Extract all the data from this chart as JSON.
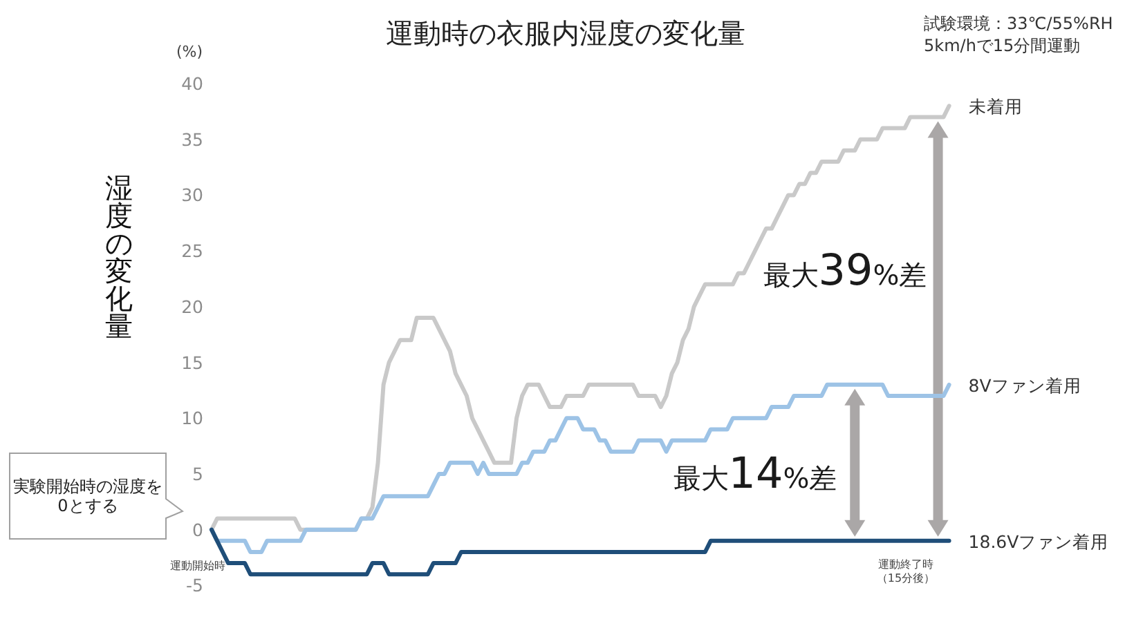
{
  "chart_data": {
    "type": "line",
    "title": "運動時の衣服内湿度の変化量",
    "ylabel": "湿度の変化量",
    "categories": [
      null,
      null,
      null,
      null,
      null,
      null,
      null,
      null,
      null,
      null,
      null,
      null,
      null,
      null,
      null,
      null,
      null,
      null,
      null,
      null,
      null,
      null,
      null,
      null,
      null,
      null,
      null,
      null,
      null,
      null,
      null,
      null,
      null,
      null,
      null,
      null,
      null,
      null,
      null,
      null,
      null,
      null,
      null,
      null,
      null,
      null,
      null,
      null,
      null,
      null,
      null,
      null,
      null,
      null,
      null,
      null,
      null,
      null,
      null,
      null,
      null,
      null,
      null,
      null,
      null,
      null,
      null,
      null,
      null,
      null,
      null,
      null,
      null,
      null,
      null,
      null,
      null,
      null,
      null,
      null,
      null,
      null,
      null,
      null,
      null,
      null,
      null,
      null,
      null,
      null,
      null,
      null,
      null,
      null,
      null,
      null,
      null,
      null,
      null,
      null,
      null,
      null,
      null,
      null,
      null,
      null,
      null,
      null,
      null,
      null,
      null,
      null,
      null,
      null,
      null,
      null,
      null,
      null,
      null,
      null,
      null,
      null,
      null,
      null,
      null,
      null,
      null,
      null,
      null,
      null,
      null,
      null,
      null,
      null
    ],
    "series": [
      {
        "name": "未着用",
        "color": "#c9c9c9",
        "values": [
          0,
          1,
          1,
          1,
          1,
          1,
          1,
          1,
          1,
          1,
          1,
          1,
          1,
          1,
          1,
          1,
          0,
          0,
          0,
          0,
          0,
          0,
          0,
          0,
          0,
          0,
          0,
          1,
          1,
          2,
          6,
          13,
          15,
          16,
          17,
          17,
          17,
          19,
          19,
          19,
          19,
          18,
          17,
          16,
          14,
          13,
          12,
          10,
          9,
          8,
          7,
          6,
          6,
          6,
          6,
          10,
          12,
          13,
          13,
          13,
          12,
          11,
          11,
          11,
          12,
          12,
          12,
          12,
          13,
          13,
          13,
          13,
          13,
          13,
          13,
          13,
          13,
          12,
          12,
          12,
          12,
          11,
          12,
          14,
          15,
          17,
          18,
          20,
          21,
          22,
          22,
          22,
          22,
          22,
          22,
          23,
          23,
          24,
          25,
          26,
          27,
          27,
          28,
          29,
          30,
          30,
          31,
          31,
          32,
          32,
          33,
          33,
          33,
          33,
          34,
          34,
          34,
          35,
          35,
          35,
          35,
          36,
          36,
          36,
          36,
          36,
          37,
          37,
          37,
          37,
          37,
          37,
          37,
          38
        ]
      },
      {
        "name": "8Vファン着用",
        "color": "#9dc3e6",
        "values": [
          0,
          -1,
          -1,
          -1,
          -1,
          -1,
          -1,
          -2,
          -2,
          -2,
          -1,
          -1,
          -1,
          -1,
          -1,
          -1,
          -1,
          0,
          0,
          0,
          0,
          0,
          0,
          0,
          0,
          0,
          0,
          1,
          1,
          1,
          2,
          3,
          3,
          3,
          3,
          3,
          3,
          3,
          3,
          3,
          4,
          5,
          5,
          6,
          6,
          6,
          6,
          6,
          5,
          6,
          5,
          5,
          5,
          5,
          5,
          5,
          6,
          6,
          7,
          7,
          7,
          8,
          8,
          9,
          10,
          10,
          10,
          9,
          9,
          9,
          8,
          8,
          7,
          7,
          7,
          7,
          7,
          8,
          8,
          8,
          8,
          8,
          7,
          8,
          8,
          8,
          8,
          8,
          8,
          8,
          9,
          9,
          9,
          9,
          10,
          10,
          10,
          10,
          10,
          10,
          10,
          11,
          11,
          11,
          11,
          12,
          12,
          12,
          12,
          12,
          12,
          13,
          13,
          13,
          13,
          13,
          13,
          13,
          13,
          13,
          13,
          13,
          12,
          12,
          12,
          12,
          12,
          12,
          12,
          12,
          12,
          12,
          12,
          13
        ]
      },
      {
        "name": "18.6Vファン着用",
        "color": "#1f4e79",
        "values": [
          0,
          -1,
          -2,
          -3,
          -3,
          -3,
          -3,
          -4,
          -4,
          -4,
          -4,
          -4,
          -4,
          -4,
          -4,
          -4,
          -4,
          -4,
          -4,
          -4,
          -4,
          -4,
          -4,
          -4,
          -4,
          -4,
          -4,
          -4,
          -4,
          -3,
          -3,
          -3,
          -4,
          -4,
          -4,
          -4,
          -4,
          -4,
          -4,
          -4,
          -3,
          -3,
          -3,
          -3,
          -3,
          -2,
          -2,
          -2,
          -2,
          -2,
          -2,
          -2,
          -2,
          -2,
          -2,
          -2,
          -2,
          -2,
          -2,
          -2,
          -2,
          -2,
          -2,
          -2,
          -2,
          -2,
          -2,
          -2,
          -2,
          -2,
          -2,
          -2,
          -2,
          -2,
          -2,
          -2,
          -2,
          -2,
          -2,
          -2,
          -2,
          -2,
          -2,
          -2,
          -2,
          -2,
          -2,
          -2,
          -2,
          -2,
          -1,
          -1,
          -1,
          -1,
          -1,
          -1,
          -1,
          -1,
          -1,
          -1,
          -1,
          -1,
          -1,
          -1,
          -1,
          -1,
          -1,
          -1,
          -1,
          -1,
          -1,
          -1,
          -1,
          -1,
          -1,
          -1,
          -1,
          -1,
          -1,
          -1,
          -1,
          -1,
          -1,
          -1,
          -1,
          -1,
          -1,
          -1,
          -1,
          -1,
          -1,
          -1,
          -1,
          -1
        ]
      }
    ],
    "ylim": [
      -5,
      40
    ],
    "yticks": [
      -5,
      0,
      5,
      10,
      15,
      20,
      25,
      30,
      35,
      40
    ],
    "annotations": [
      "(%)",
      "試験環境：33℃/55%RH",
      "5km/hで15分間運動",
      "実験開始時の湿度を0とする",
      "最大39%差",
      "最大14%差",
      "運動開始時",
      "運動終了時（15分後）"
    ]
  }
}
